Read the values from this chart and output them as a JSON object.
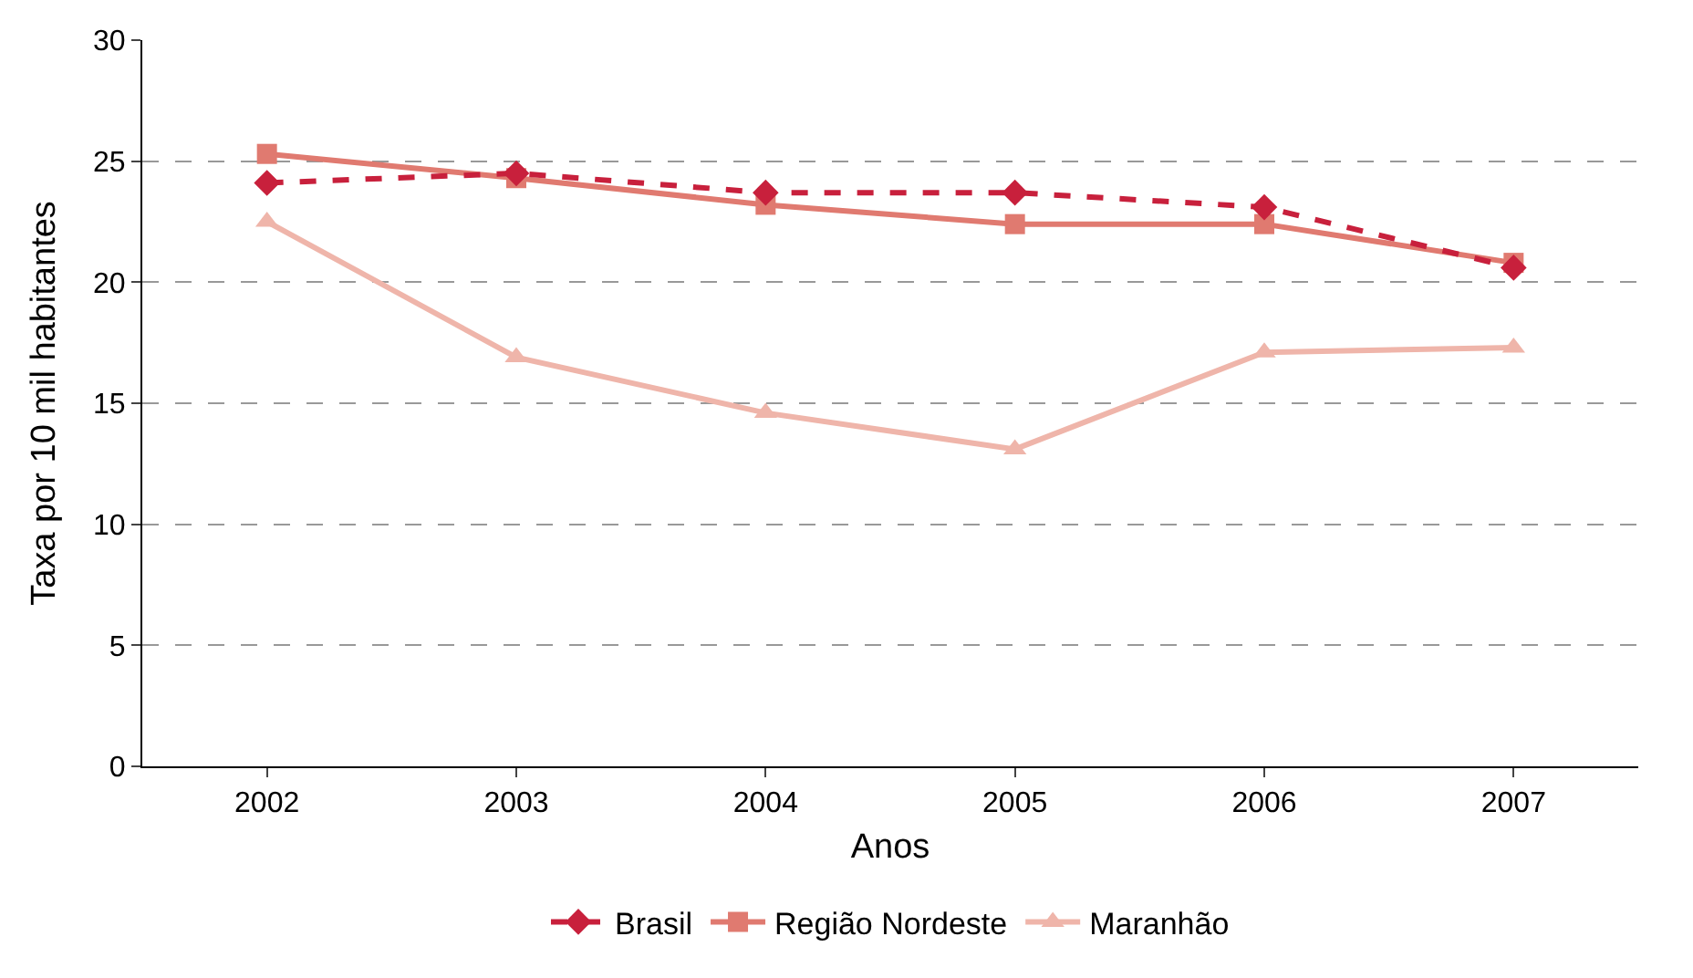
{
  "chart_data": {
    "type": "line",
    "xlabel": "Anos",
    "ylabel": "Taxa por 10 mil habitantes",
    "categories": [
      "2002",
      "2003",
      "2004",
      "2005",
      "2006",
      "2007"
    ],
    "series": [
      {
        "name": "Brasil",
        "color": "#c8203c",
        "values": [
          24.1,
          24.5,
          23.7,
          23.7,
          23.1,
          20.6
        ],
        "marker": "diamond",
        "line_style": "dashed"
      },
      {
        "name": "Região Nordeste",
        "color": "#e07a70",
        "values": [
          25.3,
          24.3,
          23.2,
          22.4,
          22.4,
          20.8
        ],
        "marker": "square",
        "line_style": "solid"
      },
      {
        "name": "Maranhão",
        "color": "#efb5aa",
        "values": [
          22.5,
          16.9,
          14.6,
          13.1,
          17.1,
          17.3
        ],
        "marker": "triangle",
        "line_style": "solid"
      }
    ],
    "ylim": [
      0,
      30
    ],
    "yticks": [
      0,
      5,
      10,
      15,
      20,
      25,
      30
    ],
    "grid": "y",
    "legend": "bottom"
  }
}
